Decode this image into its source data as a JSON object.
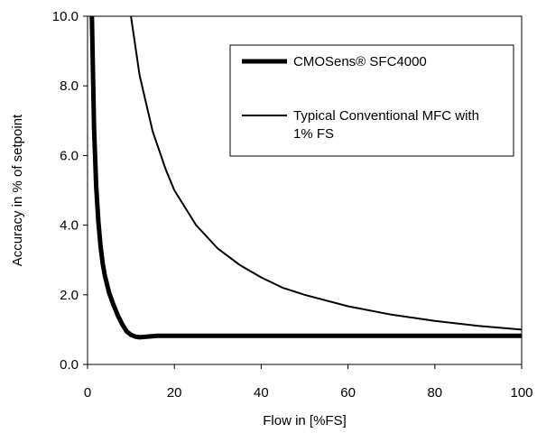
{
  "chart_data": {
    "type": "line",
    "title": "",
    "xlabel": "Flow in [%FS]",
    "ylabel": "Accuracy in % of setpoint",
    "xlim": [
      0,
      100
    ],
    "ylim": [
      0,
      10
    ],
    "x_ticks": [
      "0",
      "20",
      "40",
      "60",
      "80",
      "100"
    ],
    "y_ticks": [
      "0.0",
      "2.0",
      "4.0",
      "6.0",
      "8.0",
      "10.0"
    ],
    "grid": false,
    "legend_position": "top-right",
    "series": [
      {
        "name": "CMOSens® SFC4000",
        "color": "#000000",
        "style": "thick",
        "x": [
          1,
          1.5,
          2,
          2.5,
          3,
          3.5,
          4,
          5,
          6,
          7,
          8,
          9,
          10,
          11,
          12,
          14,
          16,
          20,
          30,
          50,
          70,
          100
        ],
        "y": [
          10.0,
          6.8,
          5.1,
          4.1,
          3.4,
          2.9,
          2.55,
          2.05,
          1.7,
          1.4,
          1.15,
          0.95,
          0.85,
          0.8,
          0.78,
          0.8,
          0.82,
          0.82,
          0.82,
          0.82,
          0.82,
          0.82
        ]
      },
      {
        "name": "Typical Conventional MFC with 1% FS",
        "color": "#000000",
        "style": "thin",
        "x": [
          10,
          12,
          15,
          18,
          20,
          25,
          30,
          35,
          40,
          45,
          50,
          60,
          70,
          80,
          90,
          100
        ],
        "y": [
          10.0,
          8.3,
          6.7,
          5.6,
          5.0,
          4.0,
          3.33,
          2.86,
          2.5,
          2.2,
          2.0,
          1.67,
          1.43,
          1.25,
          1.11,
          1.0
        ]
      }
    ]
  }
}
